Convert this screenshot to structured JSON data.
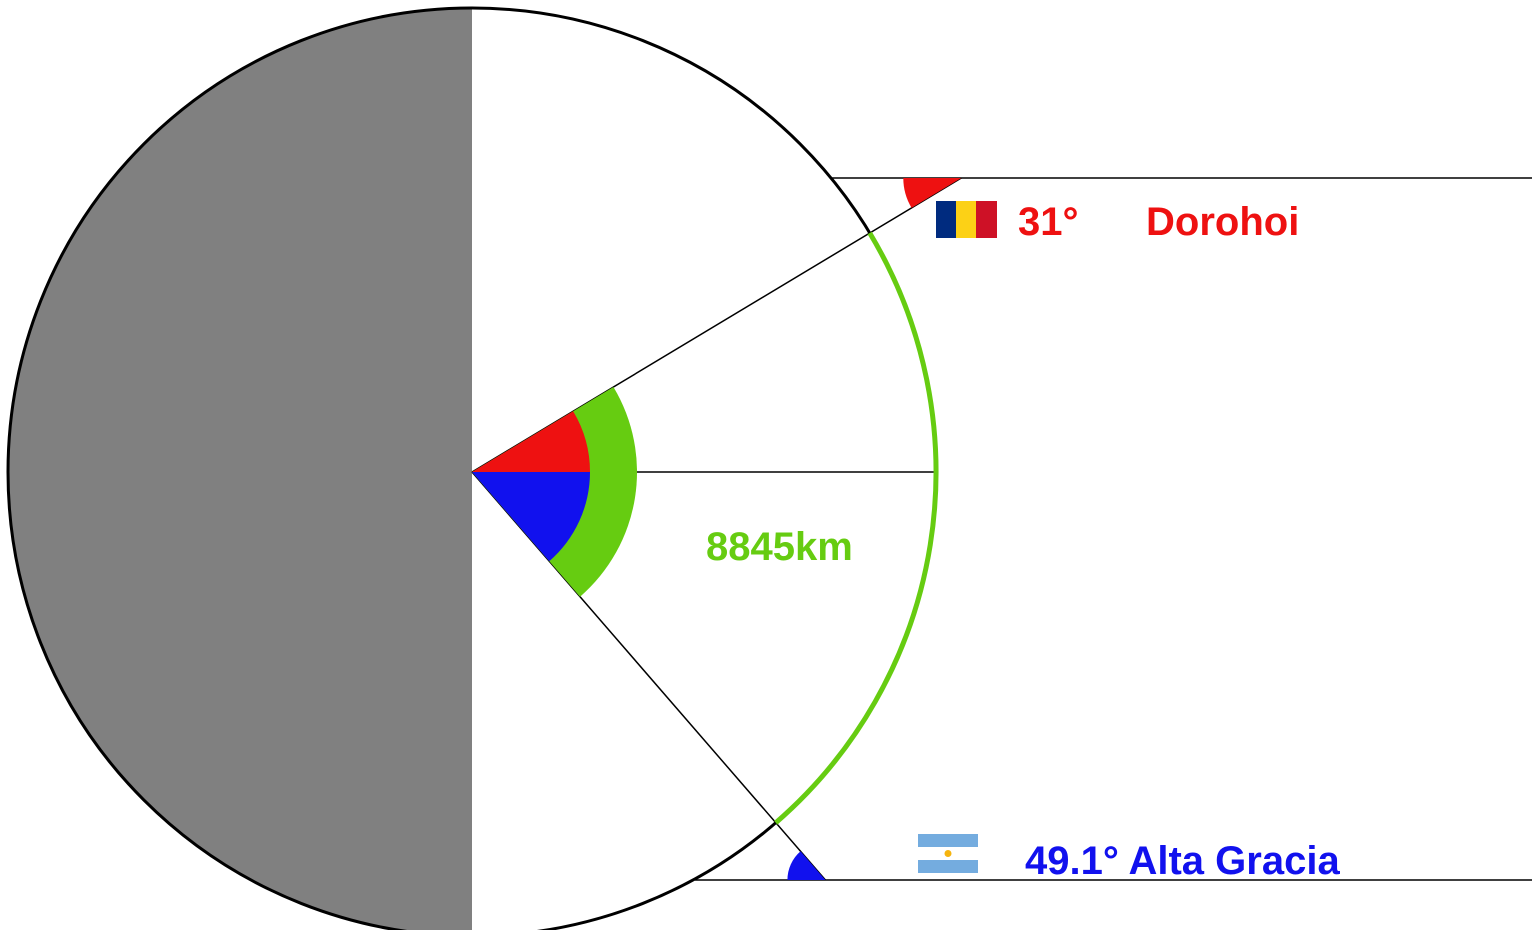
{
  "labels": {
    "north_angle": "31°",
    "north_city": "Dorohoi",
    "south_label": "49.1° Alta Gracia",
    "distance": "8845km"
  },
  "angles": {
    "north_latitude_deg": 31,
    "south_latitude_deg": 49.1
  },
  "colors": {
    "north": "#ee1111",
    "south": "#1111ee",
    "arc": "#66cc11",
    "night": "#808080",
    "outline": "#000000",
    "romania_flag": [
      "#002b7f",
      "#fcd116",
      "#ce1126"
    ],
    "argentina_flag": [
      "#74acdf",
      "#ffffff",
      "#74acdf"
    ]
  },
  "icons": {
    "north_flag": "romania-flag-icon",
    "south_flag": "argentina-flag-icon"
  }
}
